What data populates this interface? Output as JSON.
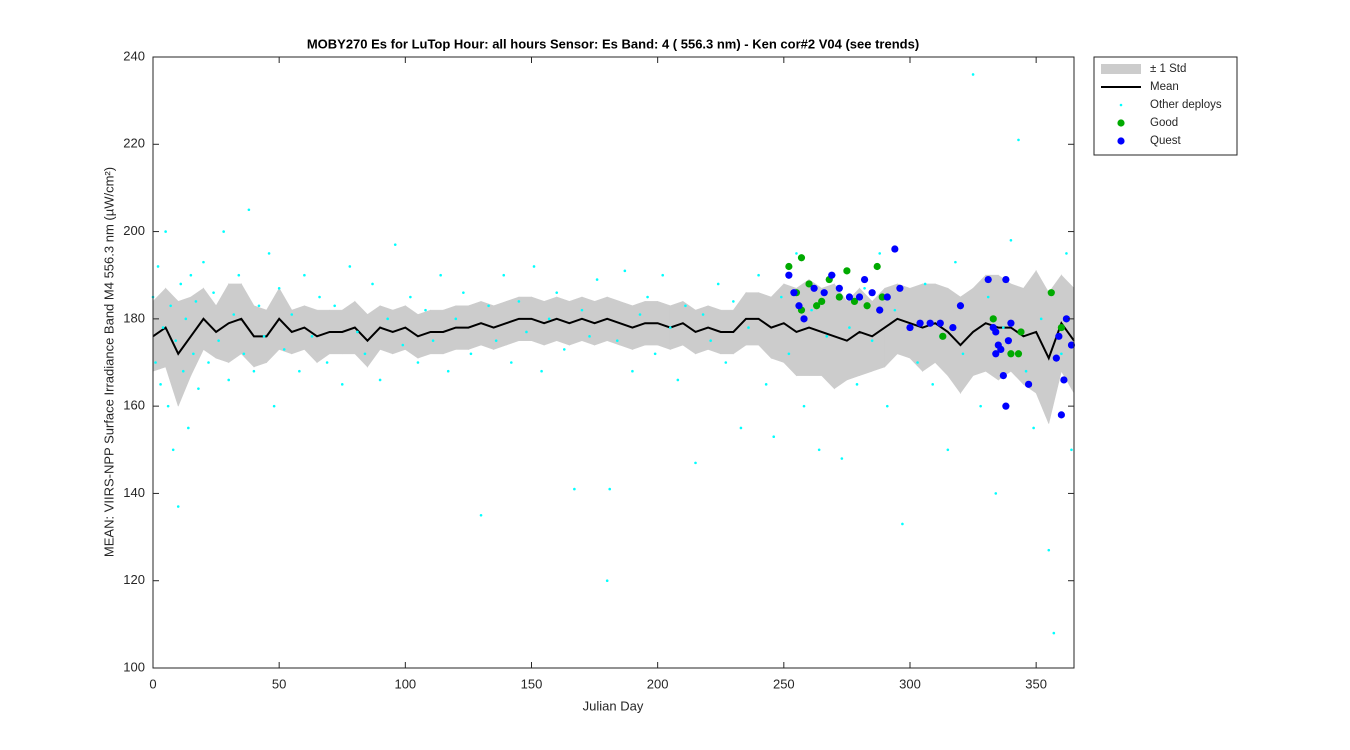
{
  "chart_data": {
    "type": "line",
    "title": "MOBY270   Es for LuTop  Hour: all hours  Sensor: Es Band: 4 ( 556.3 nm)  - Ken cor#2 V04 (see trends)",
    "xlabel": "Julian Day",
    "ylabel": "MEAN: VIIRS-NPP Surface Irradiance Band M4 556.3 nm (µW/cm²)",
    "xlim": [
      0,
      365
    ],
    "xticks": [
      0,
      50,
      100,
      150,
      200,
      250,
      300,
      350
    ],
    "ylim": [
      100,
      240
    ],
    "yticks": [
      100,
      120,
      140,
      160,
      180,
      200,
      220,
      240
    ],
    "grid": false,
    "legend": "outside-top-right",
    "x": [
      0,
      5,
      10,
      15,
      20,
      25,
      30,
      35,
      40,
      45,
      50,
      55,
      60,
      65,
      70,
      75,
      80,
      85,
      90,
      95,
      100,
      105,
      110,
      115,
      120,
      125,
      130,
      135,
      140,
      145,
      150,
      155,
      160,
      165,
      170,
      175,
      180,
      185,
      190,
      195,
      200,
      205,
      210,
      215,
      220,
      225,
      230,
      235,
      240,
      245,
      250,
      255,
      260,
      265,
      270,
      275,
      280,
      285,
      290,
      295,
      300,
      305,
      310,
      315,
      320,
      325,
      330,
      335,
      340,
      345,
      350,
      355,
      360,
      365
    ],
    "series": [
      {
        "name": "± 1 Std",
        "color": "#cccccc",
        "style": "band",
        "values": [
          8,
          9,
          12,
          9,
          7,
          6,
          9,
          8,
          7,
          6,
          7,
          5,
          5,
          6,
          5,
          5,
          6,
          6,
          5,
          5,
          5,
          5,
          5,
          5,
          5,
          5,
          5,
          5,
          5,
          5,
          5,
          5,
          5,
          5,
          5,
          5,
          5,
          5,
          5,
          5,
          5,
          5,
          5,
          5,
          5,
          5,
          5,
          6,
          6,
          7,
          9,
          10,
          11,
          10,
          12,
          9,
          10,
          8,
          9,
          8,
          8,
          10,
          9,
          10,
          11,
          10,
          11,
          12,
          10,
          11,
          14,
          15,
          11,
          12
        ]
      },
      {
        "name": "Mean",
        "color": "#000000",
        "style": "line",
        "values": [
          176,
          178,
          172,
          176,
          180,
          177,
          179,
          180,
          176,
          176,
          180,
          177,
          178,
          176,
          177,
          177,
          178,
          175,
          178,
          177,
          178,
          176,
          177,
          177,
          178,
          178,
          179,
          178,
          179,
          180,
          180,
          179,
          180,
          179,
          180,
          179,
          180,
          179,
          178,
          179,
          179,
          178,
          179,
          177,
          178,
          177,
          177,
          180,
          180,
          178,
          179,
          177,
          178,
          177,
          176,
          175,
          177,
          176,
          178,
          180,
          179,
          178,
          179,
          177,
          174,
          177,
          179,
          178,
          178,
          176,
          177,
          171,
          179,
          175
        ]
      },
      {
        "name": "Other deploys",
        "color": "#00ffff",
        "style": "dots",
        "x": [
          0,
          1,
          2,
          3,
          4,
          5,
          6,
          7,
          8,
          9,
          10,
          11,
          12,
          13,
          14,
          15,
          16,
          17,
          18,
          20,
          22,
          24,
          26,
          28,
          30,
          32,
          34,
          36,
          38,
          40,
          42,
          44,
          46,
          48,
          50,
          52,
          55,
          58,
          60,
          63,
          66,
          69,
          72,
          75,
          78,
          81,
          84,
          87,
          90,
          93,
          96,
          99,
          102,
          105,
          108,
          111,
          114,
          117,
          120,
          123,
          126,
          130,
          133,
          136,
          139,
          142,
          145,
          148,
          151,
          154,
          157,
          160,
          163,
          167,
          170,
          173,
          176,
          180,
          181,
          184,
          187,
          190,
          193,
          196,
          199,
          202,
          205,
          208,
          211,
          215,
          218,
          221,
          224,
          227,
          230,
          233,
          236,
          240,
          243,
          246,
          249,
          252,
          255,
          258,
          261,
          264,
          267,
          270,
          273,
          276,
          279,
          282,
          285,
          288,
          291,
          294,
          297,
          300,
          303,
          306,
          309,
          312,
          315,
          318,
          321,
          325,
          328,
          331,
          334,
          337,
          340,
          343,
          346,
          349,
          352,
          355,
          357,
          360,
          362,
          364
        ],
        "values": [
          185,
          170,
          192,
          165,
          178,
          200,
          160,
          183,
          150,
          175,
          137,
          188,
          168,
          180,
          155,
          190,
          172,
          184,
          164,
          193,
          170,
          186,
          175,
          200,
          166,
          181,
          190,
          172,
          205,
          168,
          183,
          176,
          195,
          160,
          187,
          173,
          181,
          168,
          190,
          176,
          185,
          170,
          183,
          165,
          192,
          177,
          172,
          188,
          166,
          180,
          197,
          174,
          185,
          170,
          182,
          175,
          190,
          168,
          180,
          186,
          172,
          135,
          183,
          175,
          190,
          170,
          184,
          177,
          192,
          168,
          180,
          186,
          173,
          141,
          182,
          176,
          189,
          120,
          141,
          175,
          191,
          168,
          181,
          185,
          172,
          190,
          178,
          166,
          183,
          147,
          181,
          175,
          188,
          170,
          184,
          155,
          178,
          190,
          165,
          153,
          185,
          172,
          195,
          160,
          182,
          150,
          176,
          190,
          148,
          178,
          165,
          187,
          175,
          195,
          160,
          182,
          133,
          178,
          170,
          188,
          165,
          176,
          150,
          193,
          172,
          236,
          160,
          185,
          140,
          178,
          198,
          221,
          168,
          155,
          180,
          127,
          108,
          172,
          195,
          150
        ]
      },
      {
        "name": "Good",
        "color": "#00aa00",
        "style": "markers",
        "x": [
          252,
          255,
          257,
          257,
          260,
          263,
          265,
          268,
          272,
          275,
          278,
          283,
          287,
          289,
          313,
          333,
          340,
          343,
          344,
          356,
          360
        ],
        "values": [
          192,
          186,
          194,
          182,
          188,
          183,
          184,
          189,
          185,
          191,
          184,
          183,
          192,
          185,
          176,
          180,
          172,
          172,
          177,
          186,
          178
        ]
      },
      {
        "name": "Quest",
        "color": "#0000ff",
        "style": "markers",
        "x": [
          252,
          254,
          256,
          258,
          262,
          266,
          269,
          272,
          276,
          280,
          282,
          285,
          288,
          291,
          294,
          296,
          300,
          304,
          308,
          312,
          317,
          320,
          331,
          333,
          334,
          335,
          336,
          337,
          338,
          339,
          340,
          347,
          358,
          359,
          360,
          361,
          362,
          364,
          334,
          338
        ],
        "values": [
          190,
          186,
          183,
          180,
          187,
          186,
          190,
          187,
          185,
          185,
          189,
          186,
          182,
          185,
          196,
          187,
          178,
          179,
          179,
          179,
          178,
          183,
          189,
          178,
          177,
          174,
          173,
          167,
          160,
          175,
          179,
          165,
          171,
          176,
          158,
          166,
          180,
          174,
          172,
          189
        ]
      }
    ]
  }
}
